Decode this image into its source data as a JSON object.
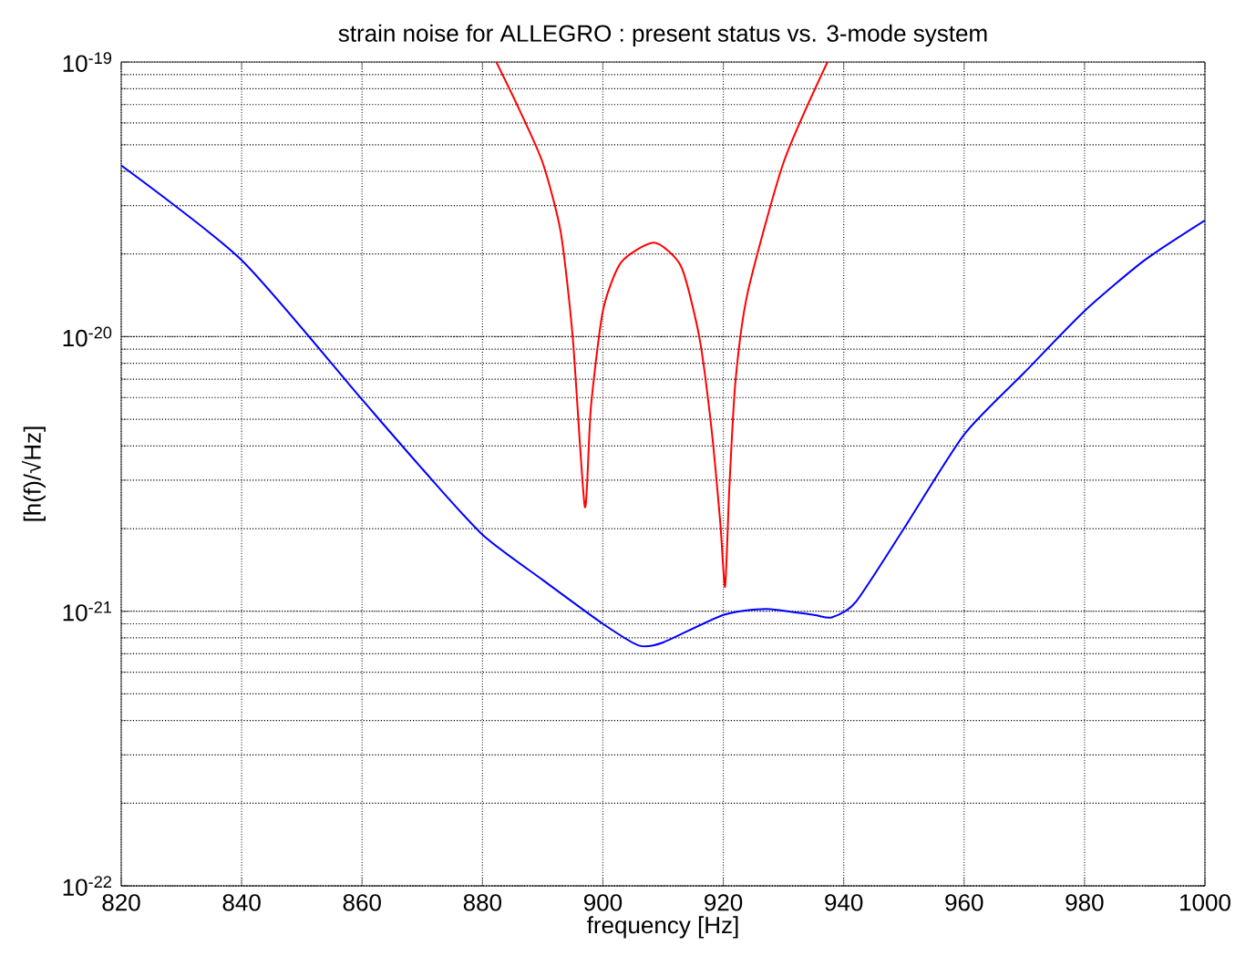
{
  "chart_data": {
    "type": "line",
    "title": "strain noise for ALLEGRO : present status vs. 3-mode system",
    "xlabel": "frequency [Hz]",
    "ylabel": "[h(f)/√Hz]",
    "log": true,
    "grid": true,
    "line_style": "solid",
    "xlim": [
      820,
      1000
    ],
    "xticks": [
      820,
      840,
      860,
      880,
      900,
      920,
      940,
      960,
      980,
      1000
    ],
    "ylim": [
      1e-22,
      1e-19
    ],
    "yticks": [
      {
        "value": 1e-22,
        "label": "10$^{-22}$"
      },
      {
        "value": 1e-21,
        "label": "10$^{-21}$"
      },
      {
        "value": 1e-20,
        "label": "10$^{-20}$"
      },
      {
        "value": 1e-19,
        "label": "10$^{-19}$"
      }
    ],
    "series": [
      {
        "color": "#0000ff",
        "x": [
          820,
          840,
          860,
          870,
          880,
          890,
          900,
          906,
          910,
          920,
          927,
          935,
          938,
          942,
          950,
          960,
          970,
          980,
          990,
          1000
        ],
        "values": [
          4.2e-20,
          1.9e-20,
          5.9e-21,
          3.3e-21,
          1.9e-21,
          1.3e-21,
          9e-22,
          7.5e-22,
          7.7e-22,
          9.7e-22,
          1.02e-21,
          9.7e-22,
          9.5e-22,
          1.08e-21,
          2e-21,
          4.4e-21,
          7.4e-21,
          1.24e-20,
          1.9e-20,
          2.65e-20
        ]
      },
      {
        "color": "#ff0000",
        "x": [
          882.3,
          886,
          890,
          893,
          895,
          897,
          898,
          900,
          903,
          908.5,
          913,
          916,
          918,
          919.5,
          920.3,
          921,
          922,
          924,
          930,
          937.3
        ],
        "values": [
          1e-19,
          6.8e-20,
          4.3e-20,
          2.4e-20,
          9.9e-21,
          2.4e-21,
          5.5e-21,
          1.24e-20,
          1.86e-20,
          2.2e-20,
          1.8e-20,
          1e-20,
          4.7e-21,
          2.1e-21,
          1.23e-21,
          2.8e-21,
          6.8e-21,
          1.43e-20,
          4.3e-20,
          1e-19
        ]
      }
    ]
  }
}
